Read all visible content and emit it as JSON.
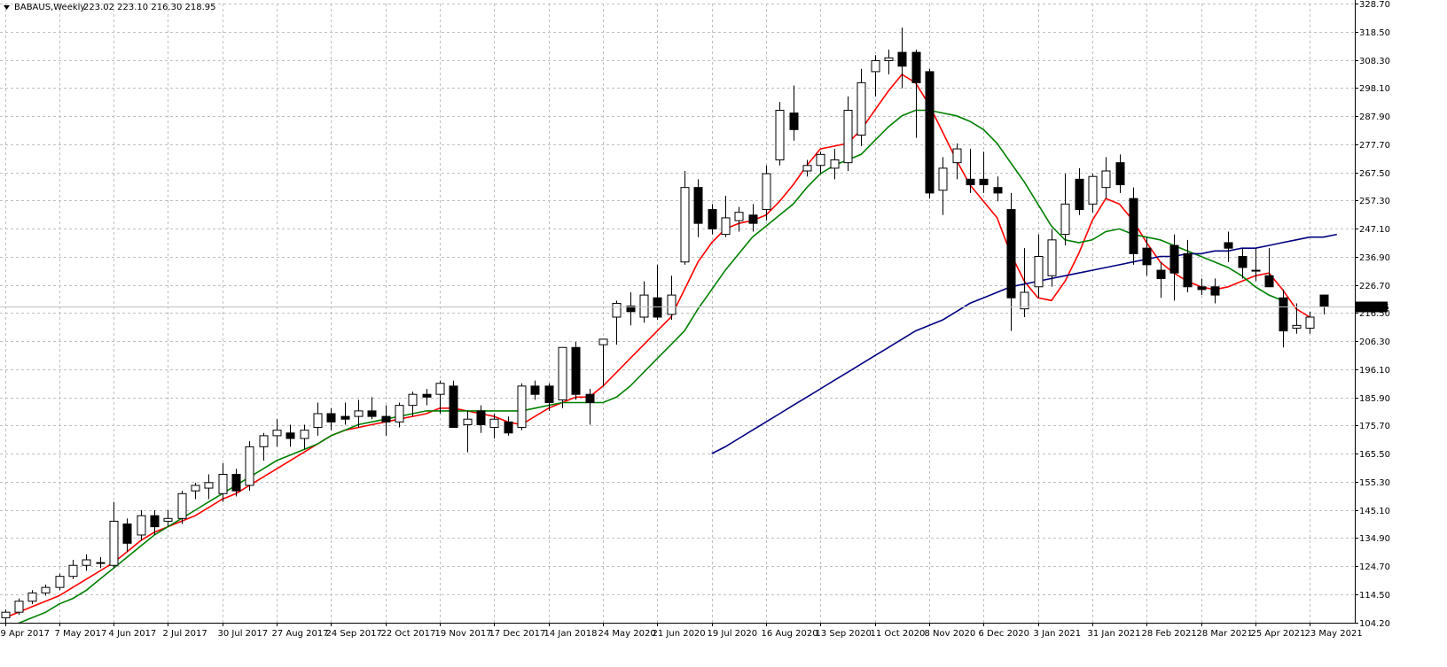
{
  "header": {
    "symbol": "BABAUS,Weekly",
    "ohlc": "223.02 223.10 216.30 218.95"
  },
  "colors": {
    "background": "#ffffff",
    "grid": "#c0c0c0",
    "candle_outline": "#000000",
    "bull_fill": "#ffffff",
    "bear_fill": "#000000",
    "ma_fast": "#ff0000",
    "ma_mid": "#008000",
    "ma_slow": "#000080",
    "price_line": "#c0c0c0",
    "price_label_bg": "#000000",
    "price_label_text": "#ffffff"
  },
  "chart_data": {
    "type": "candlestick",
    "title": "BABAUS,Weekly",
    "ylim": [
      104.2,
      328.7
    ],
    "grid": true,
    "y_ticks": [
      "328.70",
      "318.50",
      "308.30",
      "298.10",
      "287.90",
      "277.70",
      "267.50",
      "257.30",
      "247.10",
      "236.90",
      "226.70",
      "216.50",
      "206.30",
      "196.10",
      "185.90",
      "175.70",
      "165.50",
      "155.30",
      "145.10",
      "134.90",
      "124.70",
      "114.50",
      "104.20"
    ],
    "x_ticks": [
      {
        "index": 0,
        "label": "9 Apr 2017"
      },
      {
        "index": 4,
        "label": "7 May 2017"
      },
      {
        "index": 8,
        "label": "4 Jun 2017"
      },
      {
        "index": 12,
        "label": "2 Jul 2017"
      },
      {
        "index": 16,
        "label": "30 Jul 2017"
      },
      {
        "index": 20,
        "label": "27 Aug 2017"
      },
      {
        "index": 24,
        "label": "24 Sep 2017"
      },
      {
        "index": 28,
        "label": "22 Oct 2017"
      },
      {
        "index": 32,
        "label": "19 Nov 2017"
      },
      {
        "index": 36,
        "label": "17 Dec 2017"
      },
      {
        "index": 40,
        "label": "14 Jan 2018"
      },
      {
        "index": 44,
        "label": "24 May 2020"
      },
      {
        "index": 48,
        "label": "21 Jun 2020"
      },
      {
        "index": 52,
        "label": "19 Jul 2020"
      },
      {
        "index": 56,
        "label": "16 Aug 2020"
      },
      {
        "index": 60,
        "label": "13 Sep 2020"
      },
      {
        "index": 64,
        "label": "11 Oct 2020"
      },
      {
        "index": 68,
        "label": "8 Nov 2020"
      },
      {
        "index": 72,
        "label": "6 Dec 2020"
      },
      {
        "index": 76,
        "label": "3 Jan 2021"
      },
      {
        "index": 80,
        "label": "31 Jan 2021"
      },
      {
        "index": 84,
        "label": "28 Feb 2021"
      },
      {
        "index": 88,
        "label": "28 Mar 2021"
      },
      {
        "index": 92,
        "label": "25 Apr 2021"
      },
      {
        "index": 96,
        "label": "23 May 2021"
      }
    ],
    "candles": [
      [
        106,
        109,
        104,
        108
      ],
      [
        108,
        113,
        107,
        112
      ],
      [
        112,
        116,
        111,
        115
      ],
      [
        115,
        118,
        114,
        117
      ],
      [
        117,
        122,
        116,
        121
      ],
      [
        121,
        127,
        120,
        125
      ],
      [
        125,
        129,
        123,
        127
      ],
      [
        126,
        128,
        124,
        126
      ],
      [
        125,
        148,
        124,
        141
      ],
      [
        140,
        142,
        130,
        133
      ],
      [
        136,
        145,
        134,
        143
      ],
      [
        143,
        145,
        136,
        139
      ],
      [
        141,
        145,
        139,
        142
      ],
      [
        142,
        152,
        140,
        151
      ],
      [
        152,
        155,
        149,
        154
      ],
      [
        153,
        158,
        149,
        155
      ],
      [
        151,
        162,
        148,
        158
      ],
      [
        158,
        160,
        150,
        152
      ],
      [
        154,
        170,
        152,
        168
      ],
      [
        168,
        173,
        163,
        172
      ],
      [
        172,
        178,
        168,
        174
      ],
      [
        173,
        176,
        168,
        171
      ],
      [
        171,
        176,
        167,
        174
      ],
      [
        175,
        184,
        172,
        180
      ],
      [
        180,
        182,
        174,
        177
      ],
      [
        179,
        184,
        176,
        178
      ],
      [
        179,
        185,
        175,
        181
      ],
      [
        181,
        186,
        178,
        179
      ],
      [
        179,
        183,
        172,
        177
      ],
      [
        177,
        184,
        175,
        183
      ],
      [
        183,
        188,
        179,
        187
      ],
      [
        187,
        189,
        183,
        186
      ],
      [
        187,
        192,
        180,
        191
      ],
      [
        190,
        192,
        175,
        175
      ],
      [
        176,
        181,
        166,
        178
      ],
      [
        181,
        183,
        173,
        176
      ],
      [
        175,
        180,
        171,
        178
      ],
      [
        177,
        179,
        172,
        173
      ],
      [
        175,
        191,
        174,
        190
      ],
      [
        190,
        192,
        185,
        187
      ],
      [
        190,
        191,
        181,
        184
      ],
      [
        185,
        204,
        182,
        204
      ],
      [
        204,
        206,
        185,
        187
      ],
      [
        187,
        189,
        176,
        184
      ],
      [
        205,
        207,
        190,
        207
      ],
      [
        215,
        221,
        205,
        220
      ],
      [
        219,
        224,
        212,
        217
      ],
      [
        215,
        228,
        213,
        223
      ],
      [
        222,
        234,
        214,
        215
      ],
      [
        216,
        230,
        214,
        223
      ],
      [
        235,
        268,
        234,
        262
      ],
      [
        262,
        265,
        244,
        249
      ],
      [
        254,
        256,
        245,
        247
      ],
      [
        245,
        259,
        244,
        251
      ],
      [
        250,
        255,
        246,
        253
      ],
      [
        252,
        256,
        246,
        249
      ],
      [
        254,
        270,
        250,
        267
      ],
      [
        272,
        293,
        270,
        290
      ],
      [
        289,
        299,
        279,
        283
      ],
      [
        268,
        272,
        266,
        270
      ],
      [
        270,
        275,
        267,
        274
      ],
      [
        269,
        276,
        265,
        272
      ],
      [
        271,
        295,
        268,
        290
      ],
      [
        281,
        305,
        277,
        300
      ],
      [
        304,
        310,
        295,
        308
      ],
      [
        308,
        312,
        303,
        309
      ],
      [
        311,
        320,
        298,
        306
      ],
      [
        311,
        312,
        280,
        300
      ],
      [
        304,
        305,
        258,
        260
      ],
      [
        261,
        273,
        252,
        269
      ],
      [
        271,
        278,
        265,
        276
      ],
      [
        265,
        276,
        260,
        263
      ],
      [
        265,
        275,
        260,
        263
      ],
      [
        262,
        266,
        257,
        260
      ],
      [
        254,
        260,
        210,
        222
      ],
      [
        218,
        240,
        215,
        224
      ],
      [
        226,
        245,
        222,
        237
      ],
      [
        230,
        247,
        226,
        243
      ],
      [
        245,
        267,
        241,
        256
      ],
      [
        265,
        269,
        252,
        254
      ],
      [
        256,
        267,
        253,
        266
      ],
      [
        262,
        273,
        258,
        268
      ],
      [
        271,
        274,
        260,
        263
      ],
      [
        258,
        262,
        234,
        238
      ],
      [
        240,
        244,
        230,
        234
      ],
      [
        232,
        235,
        222,
        229
      ],
      [
        241,
        245,
        221,
        231
      ],
      [
        238,
        243,
        224,
        226
      ],
      [
        226,
        229,
        223,
        225
      ],
      [
        226,
        229,
        220,
        223
      ],
      [
        242,
        246,
        235,
        240
      ],
      [
        237,
        240,
        229,
        233
      ],
      [
        232,
        240,
        228,
        232
      ],
      [
        230,
        240,
        226,
        226
      ],
      [
        222,
        225,
        204,
        210
      ],
      [
        211,
        220,
        209,
        212
      ],
      [
        211,
        217,
        209,
        215
      ],
      [
        223,
        223,
        216,
        219
      ]
    ],
    "price_label": "218.95",
    "current_price": 218.95,
    "ma": [
      {
        "color": "#ff0000",
        "start": 0,
        "values": [
          106,
          108,
          110,
          112,
          114,
          117,
          120,
          123,
          126,
          130,
          134,
          137,
          139,
          141,
          143,
          146,
          149,
          151,
          154,
          157,
          160,
          163,
          166,
          169,
          172,
          174,
          175,
          176,
          177,
          178,
          179,
          180,
          182,
          182,
          181,
          180,
          179,
          177,
          176,
          179,
          182,
          184,
          186,
          186,
          190,
          195,
          200,
          205,
          210,
          215,
          225,
          235,
          242,
          247,
          249,
          250,
          252,
          257,
          263,
          270,
          276,
          277,
          278,
          283,
          290,
          297,
          303,
          300,
          292,
          282,
          272,
          263,
          257,
          251,
          238,
          228,
          222,
          221,
          228,
          238,
          250,
          258,
          256,
          250,
          242,
          235,
          231,
          228,
          226,
          225,
          226,
          228,
          230,
          231,
          225,
          218,
          215
        ]
      },
      {
        "color": "#008000",
        "start": 1,
        "values": [
          104,
          106,
          108,
          111,
          113,
          116,
          120,
          124,
          128,
          132,
          136,
          139,
          142,
          145,
          148,
          151,
          154,
          157,
          160,
          163,
          165,
          167,
          169,
          172,
          174,
          176,
          177,
          178,
          179,
          180,
          181,
          181,
          181,
          181,
          181,
          181,
          181,
          181,
          182,
          183,
          184,
          184,
          184,
          184,
          186,
          190,
          195,
          200,
          205,
          210,
          218,
          225,
          232,
          238,
          244,
          248,
          252,
          256,
          262,
          267,
          270,
          272,
          274,
          279,
          284,
          288,
          290,
          290,
          289,
          288,
          286,
          283,
          278,
          271,
          264,
          256,
          248,
          243,
          242,
          243,
          246,
          247,
          245,
          244,
          243,
          241,
          239,
          237,
          235,
          233,
          230,
          226,
          223,
          221
        ]
      },
      {
        "color": "#000080",
        "start": 52,
        "values": [
          165.5,
          168,
          171,
          174,
          177,
          180,
          183,
          186,
          189,
          192,
          195,
          198,
          201,
          204,
          207,
          210,
          212,
          214,
          217,
          220,
          222,
          224,
          226,
          227,
          228,
          229,
          230,
          231,
          232,
          233,
          234,
          235,
          236,
          237,
          237,
          238,
          238,
          239,
          239,
          240,
          240,
          241,
          242,
          243,
          244,
          244,
          245
        ]
      }
    ]
  }
}
